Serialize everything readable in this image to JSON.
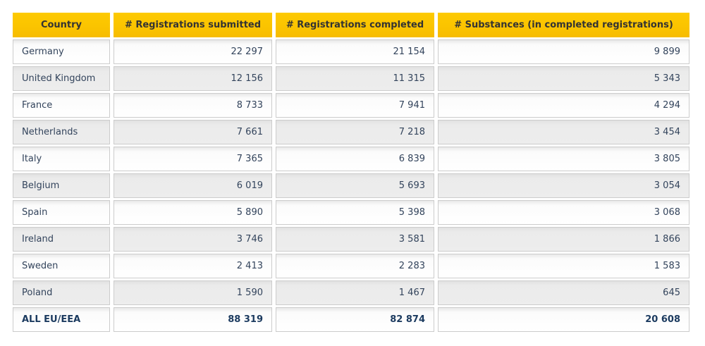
{
  "colors": {
    "header_bg": "#fbc400",
    "header_text": "#333333",
    "body_text": "#33445c",
    "total_text": "#1b3a5f",
    "row_alt_bg": "#ededed",
    "cell_border": "#cccccc",
    "page_bg": "#ffffff"
  },
  "chart_data": {
    "type": "table",
    "title": "",
    "columns": [
      "Country",
      "# Registrations submitted",
      "# Registrations completed",
      "# Substances (in completed registrations)"
    ],
    "rows": [
      {
        "label": "Germany",
        "values": [
          22297,
          21154,
          9899
        ],
        "display": [
          "22 297",
          "21 154",
          "9 899"
        ]
      },
      {
        "label": "United Kingdom",
        "values": [
          12156,
          11315,
          5343
        ],
        "display": [
          "12 156",
          "11 315",
          "5 343"
        ]
      },
      {
        "label": "France",
        "values": [
          8733,
          7941,
          4294
        ],
        "display": [
          "8 733",
          "7 941",
          "4 294"
        ]
      },
      {
        "label": "Netherlands",
        "values": [
          7661,
          7218,
          3454
        ],
        "display": [
          "7 661",
          "7 218",
          "3 454"
        ]
      },
      {
        "label": "Italy",
        "values": [
          7365,
          6839,
          3805
        ],
        "display": [
          "7 365",
          "6 839",
          "3 805"
        ]
      },
      {
        "label": "Belgium",
        "values": [
          6019,
          5693,
          3054
        ],
        "display": [
          "6 019",
          "5 693",
          "3 054"
        ]
      },
      {
        "label": "Spain",
        "values": [
          5890,
          5398,
          3068
        ],
        "display": [
          "5 890",
          "5 398",
          "3 068"
        ]
      },
      {
        "label": "Ireland",
        "values": [
          3746,
          3581,
          1866
        ],
        "display": [
          "3 746",
          "3 581",
          "1 866"
        ]
      },
      {
        "label": "Sweden",
        "values": [
          2413,
          2283,
          1583
        ],
        "display": [
          "2 413",
          "2 283",
          "1 583"
        ]
      },
      {
        "label": "Poland",
        "values": [
          1590,
          1467,
          645
        ],
        "display": [
          "1 590",
          "1 467",
          "645"
        ]
      }
    ],
    "total_row": {
      "label": "ALL EU/EEA",
      "values": [
        88319,
        82874,
        20608
      ],
      "display": [
        "88 319",
        "82 874",
        "20 608"
      ]
    },
    "layout": {
      "header_alignment": "center",
      "label_alignment": "left",
      "value_alignment": "right",
      "alternating_rows": true
    }
  }
}
